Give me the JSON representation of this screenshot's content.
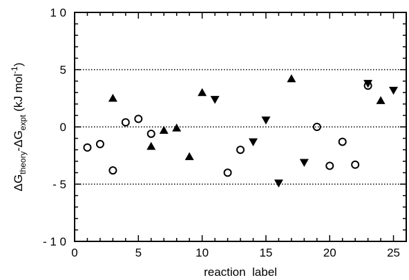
{
  "chart_data": {
    "type": "scatter",
    "title": "",
    "xlabel": "reaction  label",
    "ylabel": {
      "parts": [
        "ΔG",
        "theory",
        "-ΔG",
        "expt",
        " (kJ mol",
        "-1",
        ")"
      ]
    },
    "xlim": [
      0,
      26
    ],
    "ylim": [
      -10,
      10
    ],
    "xticks": [
      0,
      5,
      10,
      15,
      20,
      25
    ],
    "xtick_labels": [
      "0",
      "5",
      "10",
      "15",
      "20",
      "25"
    ],
    "yticks": [
      -10,
      -5,
      0,
      5,
      10
    ],
    "ytick_labels": [
      "- 1 0",
      "- 5",
      "0",
      "5",
      "1 0"
    ],
    "reference_lines": [
      5,
      0,
      -5
    ],
    "grid": false,
    "series": [
      {
        "marker": "open-circle",
        "points": [
          [
            1,
            -1.8
          ],
          [
            2,
            -1.5
          ],
          [
            3,
            -3.8
          ],
          [
            4,
            0.4
          ],
          [
            5,
            0.7
          ],
          [
            6,
            -0.6
          ],
          [
            12,
            -4.0
          ],
          [
            13,
            -2.0
          ],
          [
            19,
            0.0
          ],
          [
            20,
            -3.4
          ],
          [
            21,
            -1.3
          ],
          [
            22,
            -3.3
          ],
          [
            23,
            3.6
          ]
        ]
      },
      {
        "marker": "filled-triangle-up",
        "points": [
          [
            3,
            2.5
          ],
          [
            6,
            -1.7
          ],
          [
            7,
            -0.3
          ],
          [
            8,
            -0.1
          ],
          [
            9,
            -2.6
          ],
          [
            10,
            3.0
          ],
          [
            17,
            4.2
          ],
          [
            24,
            2.3
          ]
        ]
      },
      {
        "marker": "filled-triangle-down",
        "points": [
          [
            11,
            2.4
          ],
          [
            14,
            -1.3
          ],
          [
            15,
            0.6
          ],
          [
            16,
            -4.9
          ],
          [
            18,
            -3.1
          ],
          [
            23,
            3.8
          ],
          [
            25,
            3.2
          ]
        ]
      }
    ]
  }
}
